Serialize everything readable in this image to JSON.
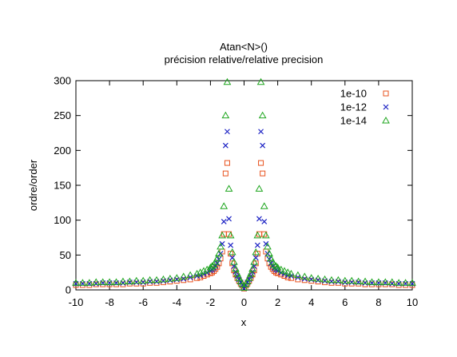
{
  "chart_data": {
    "type": "scatter",
    "title": "Atan<N>()",
    "subtitle": "précision relative/relative precision",
    "xlabel": "x",
    "ylabel": "ordre/order",
    "xlim": [
      -10,
      10
    ],
    "ylim": [
      0,
      300
    ],
    "xticks": [
      "-10",
      "-8",
      "-6",
      "-4",
      "-2",
      "0",
      "2",
      "4",
      "6",
      "8",
      "10"
    ],
    "yticks": [
      "0",
      "50",
      "100",
      "150",
      "200",
      "250",
      "300"
    ],
    "grid": false,
    "legend_position": "top-right",
    "series": [
      {
        "name": "1e-10",
        "marker": "square",
        "color": "#e8531f",
        "x": [
          -10.0,
          -9.6,
          -9.2,
          -8.8,
          -8.4,
          -8.0,
          -7.6,
          -7.2,
          -6.8,
          -6.4,
          -6.0,
          -5.6,
          -5.2,
          -4.8,
          -4.4,
          -4.0,
          -3.6,
          -3.2,
          -2.8,
          -2.6,
          -2.4,
          -2.2,
          -2.0,
          -1.9,
          -1.8,
          -1.7,
          -1.6,
          -1.5,
          -1.4,
          -1.3,
          -1.2,
          -1.1,
          -1.0,
          -0.9,
          -0.8,
          -0.7,
          -0.6,
          -0.5,
          -0.4,
          -0.3,
          -0.2,
          -0.1,
          0.0,
          0.1,
          0.2,
          0.3,
          0.4,
          0.5,
          0.6,
          0.7,
          0.8,
          0.9,
          1.0,
          1.1,
          1.2,
          1.3,
          1.4,
          1.5,
          1.6,
          1.7,
          1.8,
          1.9,
          2.0,
          2.2,
          2.4,
          2.6,
          2.8,
          3.2,
          3.6,
          4.0,
          4.4,
          4.8,
          5.2,
          5.6,
          6.0,
          6.4,
          6.8,
          7.2,
          7.6,
          8.0,
          8.4,
          8.8,
          9.2,
          9.6,
          10.0
        ],
        "y": [
          7,
          7,
          7,
          8,
          8,
          8,
          8,
          8,
          9,
          9,
          9,
          10,
          10,
          11,
          12,
          13,
          14,
          15,
          17,
          18,
          20,
          22,
          24,
          25,
          27,
          30,
          33,
          38,
          45,
          55,
          80,
          167,
          182,
          80,
          52,
          38,
          28,
          22,
          17,
          13,
          9,
          6,
          2,
          6,
          9,
          13,
          17,
          22,
          28,
          38,
          52,
          80,
          182,
          167,
          80,
          55,
          45,
          38,
          33,
          30,
          27,
          25,
          24,
          22,
          20,
          18,
          17,
          15,
          14,
          13,
          12,
          11,
          10,
          10,
          9,
          9,
          9,
          8,
          8,
          8,
          8,
          8,
          7,
          7,
          7
        ]
      },
      {
        "name": "1e-12",
        "marker": "cross",
        "color": "#1c22c4",
        "x": [
          -10.0,
          -9.6,
          -9.2,
          -8.8,
          -8.4,
          -8.0,
          -7.6,
          -7.2,
          -6.8,
          -6.4,
          -6.0,
          -5.6,
          -5.2,
          -4.8,
          -4.4,
          -4.0,
          -3.6,
          -3.2,
          -2.8,
          -2.6,
          -2.4,
          -2.2,
          -2.0,
          -1.9,
          -1.8,
          -1.7,
          -1.6,
          -1.5,
          -1.4,
          -1.3,
          -1.2,
          -1.1,
          -1.0,
          -0.9,
          -0.8,
          -0.7,
          -0.6,
          -0.5,
          -0.4,
          -0.3,
          -0.2,
          -0.1,
          0.0,
          0.1,
          0.2,
          0.3,
          0.4,
          0.5,
          0.6,
          0.7,
          0.8,
          0.9,
          1.0,
          1.1,
          1.2,
          1.3,
          1.4,
          1.5,
          1.6,
          1.7,
          1.8,
          1.9,
          2.0,
          2.2,
          2.4,
          2.6,
          2.8,
          3.2,
          3.6,
          4.0,
          4.4,
          4.8,
          5.2,
          5.6,
          6.0,
          6.4,
          6.8,
          7.2,
          7.6,
          8.0,
          8.4,
          8.8,
          9.2,
          9.6,
          10.0
        ],
        "y": [
          9,
          9,
          9,
          9,
          10,
          10,
          10,
          10,
          11,
          11,
          11,
          12,
          12,
          13,
          14,
          15,
          16,
          18,
          20,
          21,
          23,
          25,
          28,
          29,
          31,
          34,
          38,
          44,
          52,
          66,
          98,
          207,
          227,
          102,
          64,
          46,
          34,
          26,
          20,
          15,
          11,
          7,
          2,
          7,
          11,
          15,
          20,
          26,
          34,
          46,
          64,
          102,
          227,
          207,
          98,
          66,
          52,
          44,
          38,
          34,
          31,
          29,
          28,
          25,
          23,
          21,
          20,
          18,
          16,
          15,
          14,
          13,
          12,
          12,
          11,
          11,
          11,
          10,
          10,
          10,
          10,
          9,
          9,
          9,
          9
        ]
      },
      {
        "name": "1e-14",
        "marker": "triangle",
        "color": "#1fa61f",
        "x": [
          -10.0,
          -9.6,
          -9.2,
          -8.8,
          -8.4,
          -8.0,
          -7.6,
          -7.2,
          -6.8,
          -6.4,
          -6.0,
          -5.6,
          -5.2,
          -4.8,
          -4.4,
          -4.0,
          -3.6,
          -3.2,
          -2.8,
          -2.6,
          -2.4,
          -2.2,
          -2.0,
          -1.9,
          -1.8,
          -1.7,
          -1.6,
          -1.5,
          -1.4,
          -1.3,
          -1.2,
          -1.1,
          -1.0,
          -0.9,
          -0.8,
          -0.7,
          -0.6,
          -0.5,
          -0.4,
          -0.3,
          -0.2,
          -0.1,
          0.0,
          0.1,
          0.2,
          0.3,
          0.4,
          0.5,
          0.6,
          0.7,
          0.8,
          0.9,
          1.0,
          1.1,
          1.2,
          1.3,
          1.4,
          1.5,
          1.6,
          1.7,
          1.8,
          1.9,
          2.0,
          2.2,
          2.4,
          2.6,
          2.8,
          3.2,
          3.6,
          4.0,
          4.4,
          4.8,
          5.2,
          5.6,
          6.0,
          6.4,
          6.8,
          7.2,
          7.6,
          8.0,
          8.4,
          8.8,
          9.2,
          9.6,
          10.0
        ],
        "y": [
          10,
          10,
          10,
          11,
          11,
          11,
          11,
          12,
          12,
          13,
          13,
          14,
          14,
          15,
          16,
          17,
          19,
          21,
          23,
          25,
          27,
          29,
          32,
          34,
          36,
          40,
          45,
          52,
          62,
          78,
          120,
          250,
          298,
          145,
          78,
          54,
          40,
          30,
          23,
          17,
          12,
          8,
          3,
          8,
          12,
          17,
          23,
          30,
          40,
          54,
          78,
          145,
          298,
          250,
          120,
          78,
          62,
          52,
          45,
          40,
          36,
          34,
          32,
          29,
          27,
          25,
          23,
          21,
          19,
          17,
          16,
          15,
          14,
          14,
          13,
          13,
          12,
          12,
          11,
          11,
          11,
          11,
          10,
          10,
          10
        ]
      }
    ]
  }
}
